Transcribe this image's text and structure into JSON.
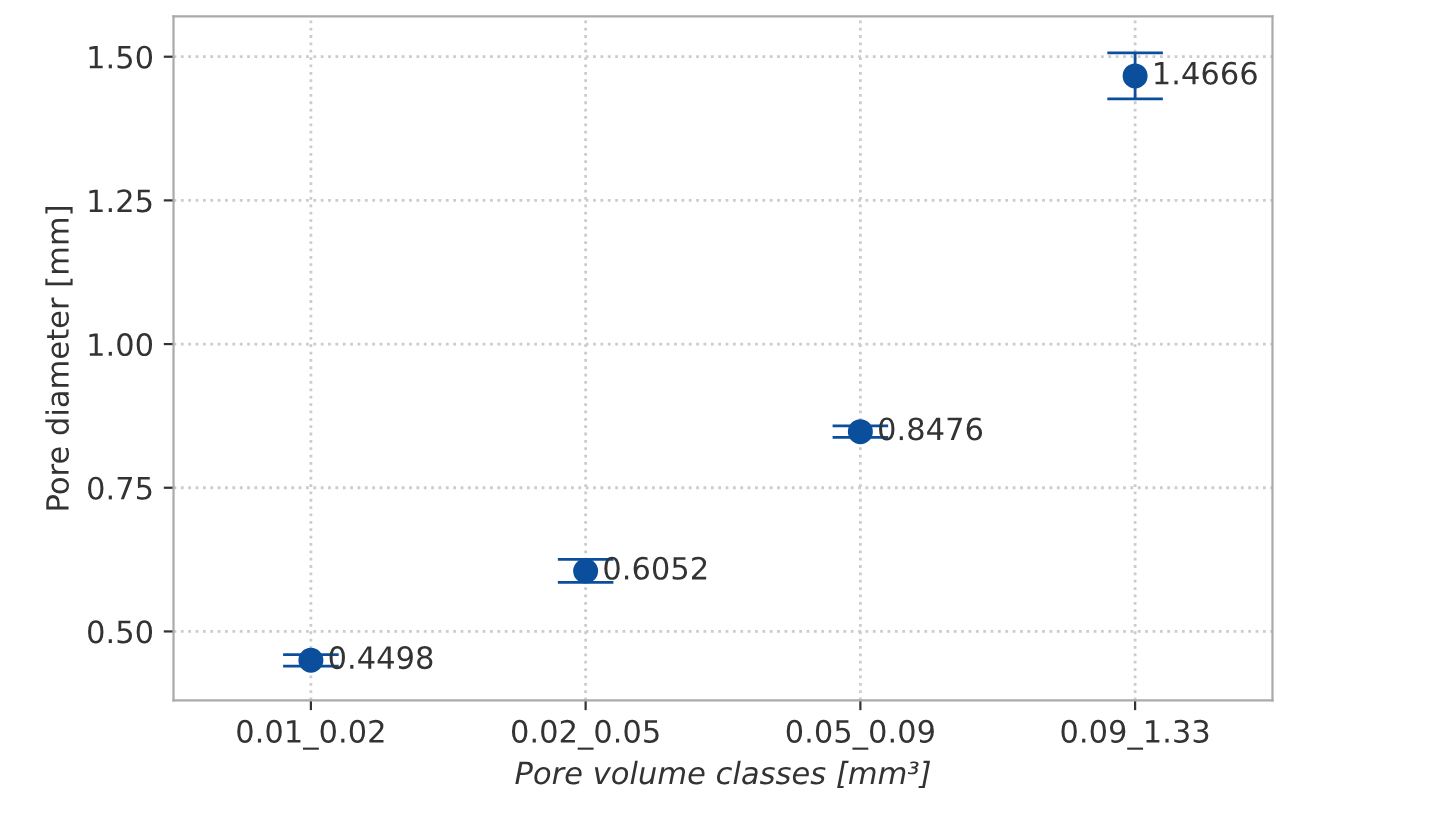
{
  "chart_data": {
    "type": "scatter",
    "xlabel": "Pore volume classes [mm³]",
    "ylabel": "Pore diameter [mm]",
    "categories": [
      "0.01_0.02",
      "0.02_0.05",
      "0.05_0.09",
      "0.09_1.33"
    ],
    "values": [
      0.4498,
      0.6052,
      0.8476,
      1.4666
    ],
    "errors": [
      0.01,
      0.02,
      0.01,
      0.04
    ],
    "color": "#0b4f9c",
    "marker": "circle",
    "data_labels": true,
    "grid": true,
    "ylim": [
      0.38,
      1.57
    ],
    "yticks": [
      {
        "value": 0.5,
        "label": "0.50"
      },
      {
        "value": 0.75,
        "label": "0.75"
      },
      {
        "value": 1.0,
        "label": "1.00"
      },
      {
        "value": 1.25,
        "label": "1.25"
      },
      {
        "value": 1.5,
        "label": "1.50"
      }
    ]
  }
}
